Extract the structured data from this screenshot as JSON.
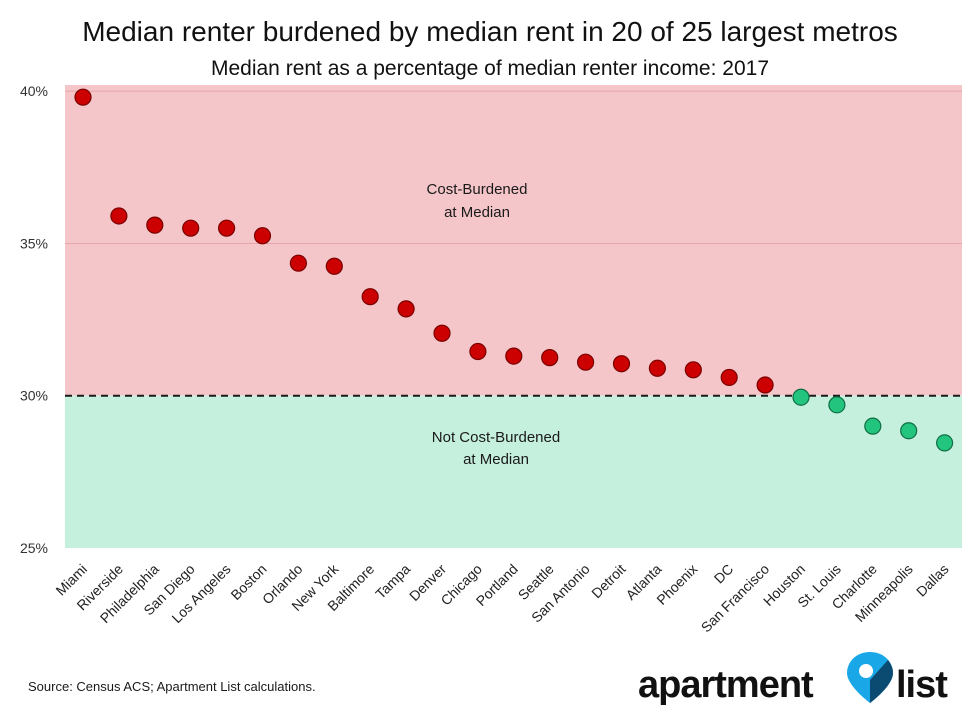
{
  "chart_data": {
    "type": "scatter",
    "title": "Median renter burdened by median rent in 20 of 25 largest metros",
    "subtitle": "Median rent as a percentage of median renter income: 2017",
    "xlabel": "",
    "ylabel": "",
    "categories": [
      "Miami",
      "Riverside",
      "Philadelphia",
      "San Diego",
      "Los Angeles",
      "Boston",
      "Orlando",
      "New York",
      "Baltimore",
      "Tampa",
      "Denver",
      "Chicago",
      "Portland",
      "Seattle",
      "San Antonio",
      "Detroit",
      "Atlanta",
      "Phoenix",
      "DC",
      "San Francisco",
      "Houston",
      "St. Louis",
      "Charlotte",
      "Minneapolis",
      "Dallas"
    ],
    "values": [
      39.8,
      35.9,
      35.6,
      35.5,
      35.5,
      35.25,
      34.35,
      34.25,
      33.25,
      32.85,
      32.05,
      31.45,
      31.3,
      31.25,
      31.1,
      31.05,
      30.9,
      30.85,
      30.6,
      30.35,
      29.95,
      29.7,
      29.0,
      28.85,
      28.45
    ],
    "ylim": [
      25,
      40.2
    ],
    "yticks": [
      25,
      30,
      35,
      40
    ],
    "ytick_labels": [
      "25%",
      "30%",
      "35%",
      "40%"
    ],
    "threshold": 30,
    "grid": "horizontal at 35 and 40",
    "regions": [
      {
        "label_line1": "Cost-Burdened",
        "label_line2": "at Median",
        "from": 30,
        "to": 40.2,
        "color": "#f5c6c9"
      },
      {
        "label_line1": "Not Cost-Burdened",
        "label_line2": "at Median",
        "from": 25,
        "to": 30,
        "color": "#c6f0de"
      }
    ],
    "colors": {
      "above": "#cc0000",
      "above_stroke": "#7a0000",
      "below": "#22c47e",
      "below_stroke": "#0f6e43",
      "threshold_line": "#1a1a1a"
    }
  },
  "footer": {
    "source": "Source: Census ACS; Apartment List calculations."
  },
  "logo": {
    "text_left": "apartment",
    "text_right": "list",
    "pin_color": "#1aa7e8"
  }
}
